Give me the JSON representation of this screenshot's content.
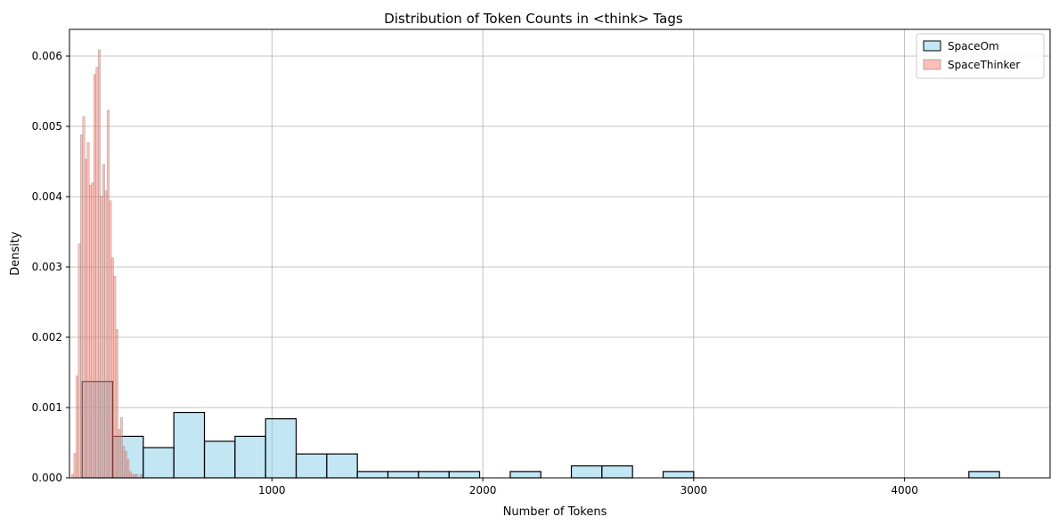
{
  "chart_data": {
    "type": "bar",
    "title": "Distribution of Token Counts in <think> Tags",
    "xlabel": "Number of Tokens",
    "ylabel": "Density",
    "xlim": [
      40,
      4690
    ],
    "ylim": [
      0,
      0.00638
    ],
    "xticks": [
      1000,
      2000,
      3000,
      4000
    ],
    "yticks": [
      0.0,
      0.001,
      0.002,
      0.003,
      0.004,
      0.005,
      0.006
    ],
    "ytick_labels": [
      "0.000",
      "0.001",
      "0.002",
      "0.003",
      "0.004",
      "0.005",
      "0.006"
    ],
    "grid": true,
    "legend_position": "top-right",
    "series": [
      {
        "name": "SpaceOm",
        "color": "#87CEEB",
        "edgecolor": "#000000",
        "alpha": 0.5,
        "bin_edges": [
          100,
          245,
          390,
          535,
          680,
          825,
          970,
          1115,
          1260,
          1405,
          1550,
          1695,
          1840,
          1985,
          2130,
          2275,
          2420,
          2565,
          2710,
          2855,
          3000,
          3145,
          3290,
          3435,
          3580,
          3725,
          3870,
          4015,
          4160,
          4305,
          4450
        ],
        "values": [
          0.00137,
          0.00059,
          0.00043,
          0.00093,
          0.00052,
          0.00059,
          0.00084,
          0.00034,
          0.00034,
          9e-05,
          9e-05,
          9e-05,
          9e-05,
          0,
          9e-05,
          0,
          0.00017,
          0.00017,
          0,
          9e-05,
          0,
          0,
          0,
          0,
          0,
          0,
          0,
          0,
          0,
          9e-05
        ]
      },
      {
        "name": "SpaceThinker",
        "color": "#FA8072",
        "edgecolor": "#808080",
        "alpha": 0.5,
        "bin_edges": [
          50,
          60.5,
          71,
          81.5,
          92,
          102.5,
          113,
          123.5,
          134,
          144.5,
          155,
          165.5,
          176,
          186.5,
          197,
          207.5,
          218,
          228.5,
          239,
          249.5,
          260,
          270.5,
          281,
          291.5,
          302,
          312.5,
          323,
          333.5,
          344,
          354.5,
          365,
          375.5,
          386
        ],
        "values": [
          5e-05,
          0.00035,
          0.00145,
          0.00333,
          0.00488,
          0.00514,
          0.00453,
          0.00477,
          0.00416,
          0.0042,
          0.00574,
          0.00584,
          0.00609,
          0.00401,
          0.00446,
          0.00408,
          0.00523,
          0.00394,
          0.00313,
          0.00287,
          0.00211,
          0.00069,
          0.00086,
          0.00045,
          0.00038,
          0.00026,
          9e-05,
          5e-05,
          5e-05,
          5e-05,
          0,
          5e-05
        ]
      }
    ]
  }
}
